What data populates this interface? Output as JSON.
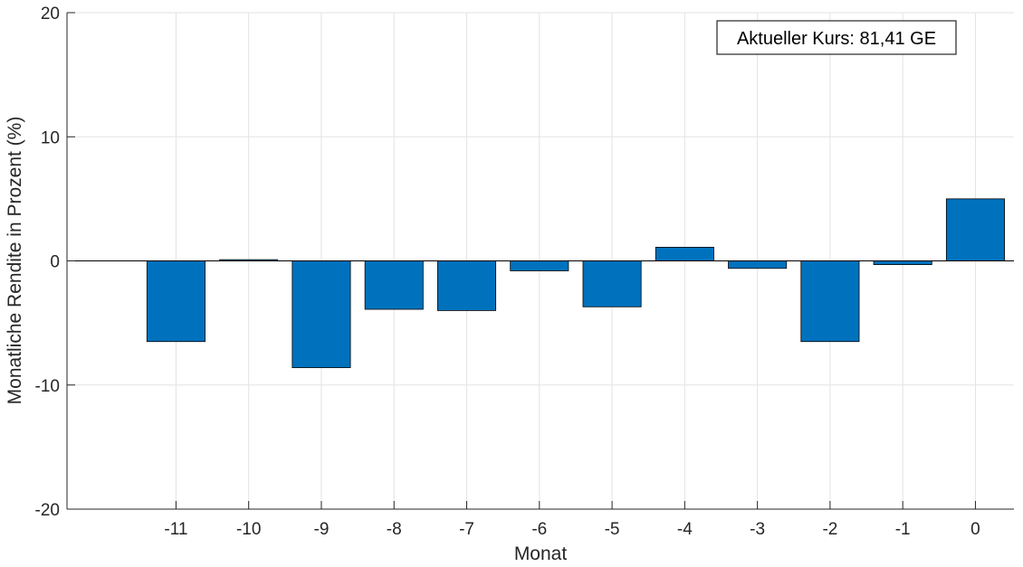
{
  "chart_data": {
    "type": "bar",
    "title": "",
    "xlabel": "Monat",
    "ylabel": "Monatliche Rendite in Prozent (%)",
    "categories": [
      "-11",
      "-10",
      "-9",
      "-8",
      "-7",
      "-6",
      "-5",
      "-4",
      "-3",
      "-2",
      "-1",
      "0"
    ],
    "values": [
      -6.5,
      0.1,
      -8.6,
      -3.9,
      -4.0,
      -0.8,
      -3.7,
      1.1,
      -0.6,
      -6.5,
      -0.3,
      5.0
    ],
    "ylim": [
      -20,
      20
    ],
    "yticks": [
      -20,
      -10,
      0,
      10,
      20
    ],
    "grid": true,
    "bar_color": "#0072BD",
    "annotation": "Aktueller Kurs: 81,41 GE"
  }
}
